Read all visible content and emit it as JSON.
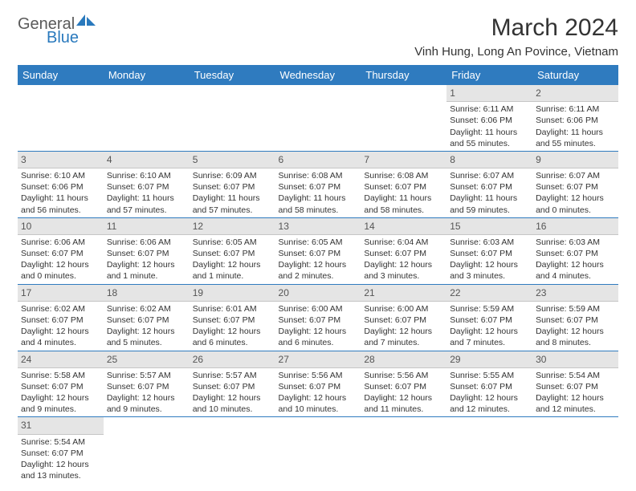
{
  "brand": {
    "part1": "General",
    "part2": "Blue"
  },
  "title": "March 2024",
  "location": "Vinh Hung, Long An Povince, Vietnam",
  "colors": {
    "header_bg": "#2f7bbf",
    "header_fg": "#ffffff",
    "daynum_bg": "#e5e5e5",
    "row_border": "#2f7bbf"
  },
  "weekdays": [
    "Sunday",
    "Monday",
    "Tuesday",
    "Wednesday",
    "Thursday",
    "Friday",
    "Saturday"
  ],
  "weeks": [
    [
      null,
      null,
      null,
      null,
      null,
      {
        "n": "1",
        "sr": "Sunrise: 6:11 AM",
        "ss": "Sunset: 6:06 PM",
        "dl": "Daylight: 11 hours and 55 minutes."
      },
      {
        "n": "2",
        "sr": "Sunrise: 6:11 AM",
        "ss": "Sunset: 6:06 PM",
        "dl": "Daylight: 11 hours and 55 minutes."
      }
    ],
    [
      {
        "n": "3",
        "sr": "Sunrise: 6:10 AM",
        "ss": "Sunset: 6:06 PM",
        "dl": "Daylight: 11 hours and 56 minutes."
      },
      {
        "n": "4",
        "sr": "Sunrise: 6:10 AM",
        "ss": "Sunset: 6:07 PM",
        "dl": "Daylight: 11 hours and 57 minutes."
      },
      {
        "n": "5",
        "sr": "Sunrise: 6:09 AM",
        "ss": "Sunset: 6:07 PM",
        "dl": "Daylight: 11 hours and 57 minutes."
      },
      {
        "n": "6",
        "sr": "Sunrise: 6:08 AM",
        "ss": "Sunset: 6:07 PM",
        "dl": "Daylight: 11 hours and 58 minutes."
      },
      {
        "n": "7",
        "sr": "Sunrise: 6:08 AM",
        "ss": "Sunset: 6:07 PM",
        "dl": "Daylight: 11 hours and 58 minutes."
      },
      {
        "n": "8",
        "sr": "Sunrise: 6:07 AM",
        "ss": "Sunset: 6:07 PM",
        "dl": "Daylight: 11 hours and 59 minutes."
      },
      {
        "n": "9",
        "sr": "Sunrise: 6:07 AM",
        "ss": "Sunset: 6:07 PM",
        "dl": "Daylight: 12 hours and 0 minutes."
      }
    ],
    [
      {
        "n": "10",
        "sr": "Sunrise: 6:06 AM",
        "ss": "Sunset: 6:07 PM",
        "dl": "Daylight: 12 hours and 0 minutes."
      },
      {
        "n": "11",
        "sr": "Sunrise: 6:06 AM",
        "ss": "Sunset: 6:07 PM",
        "dl": "Daylight: 12 hours and 1 minute."
      },
      {
        "n": "12",
        "sr": "Sunrise: 6:05 AM",
        "ss": "Sunset: 6:07 PM",
        "dl": "Daylight: 12 hours and 1 minute."
      },
      {
        "n": "13",
        "sr": "Sunrise: 6:05 AM",
        "ss": "Sunset: 6:07 PM",
        "dl": "Daylight: 12 hours and 2 minutes."
      },
      {
        "n": "14",
        "sr": "Sunrise: 6:04 AM",
        "ss": "Sunset: 6:07 PM",
        "dl": "Daylight: 12 hours and 3 minutes."
      },
      {
        "n": "15",
        "sr": "Sunrise: 6:03 AM",
        "ss": "Sunset: 6:07 PM",
        "dl": "Daylight: 12 hours and 3 minutes."
      },
      {
        "n": "16",
        "sr": "Sunrise: 6:03 AM",
        "ss": "Sunset: 6:07 PM",
        "dl": "Daylight: 12 hours and 4 minutes."
      }
    ],
    [
      {
        "n": "17",
        "sr": "Sunrise: 6:02 AM",
        "ss": "Sunset: 6:07 PM",
        "dl": "Daylight: 12 hours and 4 minutes."
      },
      {
        "n": "18",
        "sr": "Sunrise: 6:02 AM",
        "ss": "Sunset: 6:07 PM",
        "dl": "Daylight: 12 hours and 5 minutes."
      },
      {
        "n": "19",
        "sr": "Sunrise: 6:01 AM",
        "ss": "Sunset: 6:07 PM",
        "dl": "Daylight: 12 hours and 6 minutes."
      },
      {
        "n": "20",
        "sr": "Sunrise: 6:00 AM",
        "ss": "Sunset: 6:07 PM",
        "dl": "Daylight: 12 hours and 6 minutes."
      },
      {
        "n": "21",
        "sr": "Sunrise: 6:00 AM",
        "ss": "Sunset: 6:07 PM",
        "dl": "Daylight: 12 hours and 7 minutes."
      },
      {
        "n": "22",
        "sr": "Sunrise: 5:59 AM",
        "ss": "Sunset: 6:07 PM",
        "dl": "Daylight: 12 hours and 7 minutes."
      },
      {
        "n": "23",
        "sr": "Sunrise: 5:59 AM",
        "ss": "Sunset: 6:07 PM",
        "dl": "Daylight: 12 hours and 8 minutes."
      }
    ],
    [
      {
        "n": "24",
        "sr": "Sunrise: 5:58 AM",
        "ss": "Sunset: 6:07 PM",
        "dl": "Daylight: 12 hours and 9 minutes."
      },
      {
        "n": "25",
        "sr": "Sunrise: 5:57 AM",
        "ss": "Sunset: 6:07 PM",
        "dl": "Daylight: 12 hours and 9 minutes."
      },
      {
        "n": "26",
        "sr": "Sunrise: 5:57 AM",
        "ss": "Sunset: 6:07 PM",
        "dl": "Daylight: 12 hours and 10 minutes."
      },
      {
        "n": "27",
        "sr": "Sunrise: 5:56 AM",
        "ss": "Sunset: 6:07 PM",
        "dl": "Daylight: 12 hours and 10 minutes."
      },
      {
        "n": "28",
        "sr": "Sunrise: 5:56 AM",
        "ss": "Sunset: 6:07 PM",
        "dl": "Daylight: 12 hours and 11 minutes."
      },
      {
        "n": "29",
        "sr": "Sunrise: 5:55 AM",
        "ss": "Sunset: 6:07 PM",
        "dl": "Daylight: 12 hours and 12 minutes."
      },
      {
        "n": "30",
        "sr": "Sunrise: 5:54 AM",
        "ss": "Sunset: 6:07 PM",
        "dl": "Daylight: 12 hours and 12 minutes."
      }
    ],
    [
      {
        "n": "31",
        "sr": "Sunrise: 5:54 AM",
        "ss": "Sunset: 6:07 PM",
        "dl": "Daylight: 12 hours and 13 minutes."
      },
      null,
      null,
      null,
      null,
      null,
      null
    ]
  ]
}
